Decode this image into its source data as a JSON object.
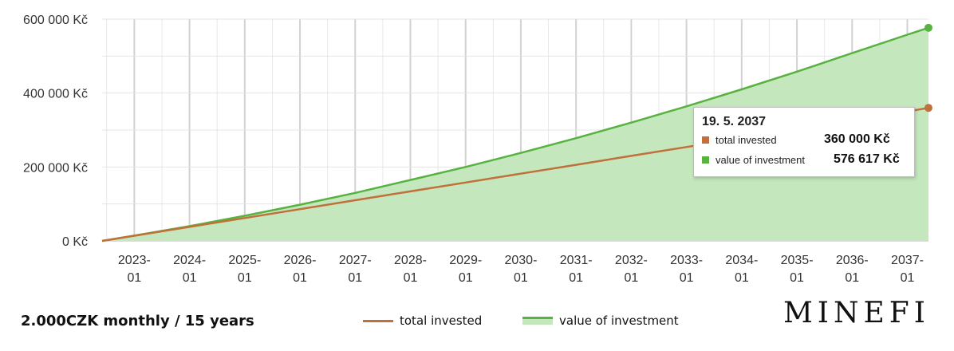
{
  "chart_data": {
    "type": "area",
    "x": [
      "2022-06-01",
      "2023-01",
      "2024-01",
      "2025-01",
      "2026-01",
      "2027-01",
      "2028-01",
      "2029-01",
      "2030-01",
      "2031-01",
      "2032-01",
      "2033-01",
      "2034-01",
      "2035-01",
      "2036-01",
      "2037-01",
      "2037-05-19"
    ],
    "x_tick_labels": [
      [
        "2023-",
        "01"
      ],
      [
        "2024-",
        "01"
      ],
      [
        "2025-",
        "01"
      ],
      [
        "2026-",
        "01"
      ],
      [
        "2027-",
        "01"
      ],
      [
        "2028-",
        "01"
      ],
      [
        "2029-",
        "01"
      ],
      [
        "2030-",
        "01"
      ],
      [
        "2031-",
        "01"
      ],
      [
        "2032-",
        "01"
      ],
      [
        "2033-",
        "01"
      ],
      [
        "2034-",
        "01"
      ],
      [
        "2035-",
        "01"
      ],
      [
        "2036-",
        "01"
      ],
      [
        "2037-",
        "01"
      ]
    ],
    "y_tick_labels": [
      "0 Kč",
      "200 000 Kč",
      "400 000 Kč",
      "600 000 Kč"
    ],
    "ylim": [
      0,
      600000
    ],
    "grid": true,
    "series": [
      {
        "name": "total invested",
        "kind": "line",
        "color": "#c0703a",
        "values": [
          0,
          14000,
          38000,
          62000,
          86000,
          110000,
          134000,
          158000,
          182000,
          206000,
          230000,
          254000,
          278000,
          302000,
          326000,
          350000,
          360000
        ]
      },
      {
        "name": "value of investment",
        "kind": "area",
        "color": "#57b23f",
        "fill": "#c4e7bd",
        "values": [
          0,
          14300,
          40000,
          68000,
          98000,
          130000,
          165000,
          200000,
          238000,
          278000,
          320000,
          364000,
          410000,
          458000,
          508000,
          558000,
          576617
        ]
      }
    ],
    "tooltip": {
      "date": "19. 5. 2037",
      "rows": [
        {
          "label": "total invested",
          "value": "360 000 Kč",
          "color": "#c0703a"
        },
        {
          "label": "value of investment",
          "value": "576 617 Kč",
          "color": "#57b23f"
        }
      ]
    }
  },
  "caption": "2.000CZK monthly / 15 years",
  "legend": [
    {
      "label": "total invested",
      "color": "#c0703a"
    },
    {
      "label": "value of investment",
      "color": "#57b23f"
    }
  ],
  "logo": "MINEFI"
}
